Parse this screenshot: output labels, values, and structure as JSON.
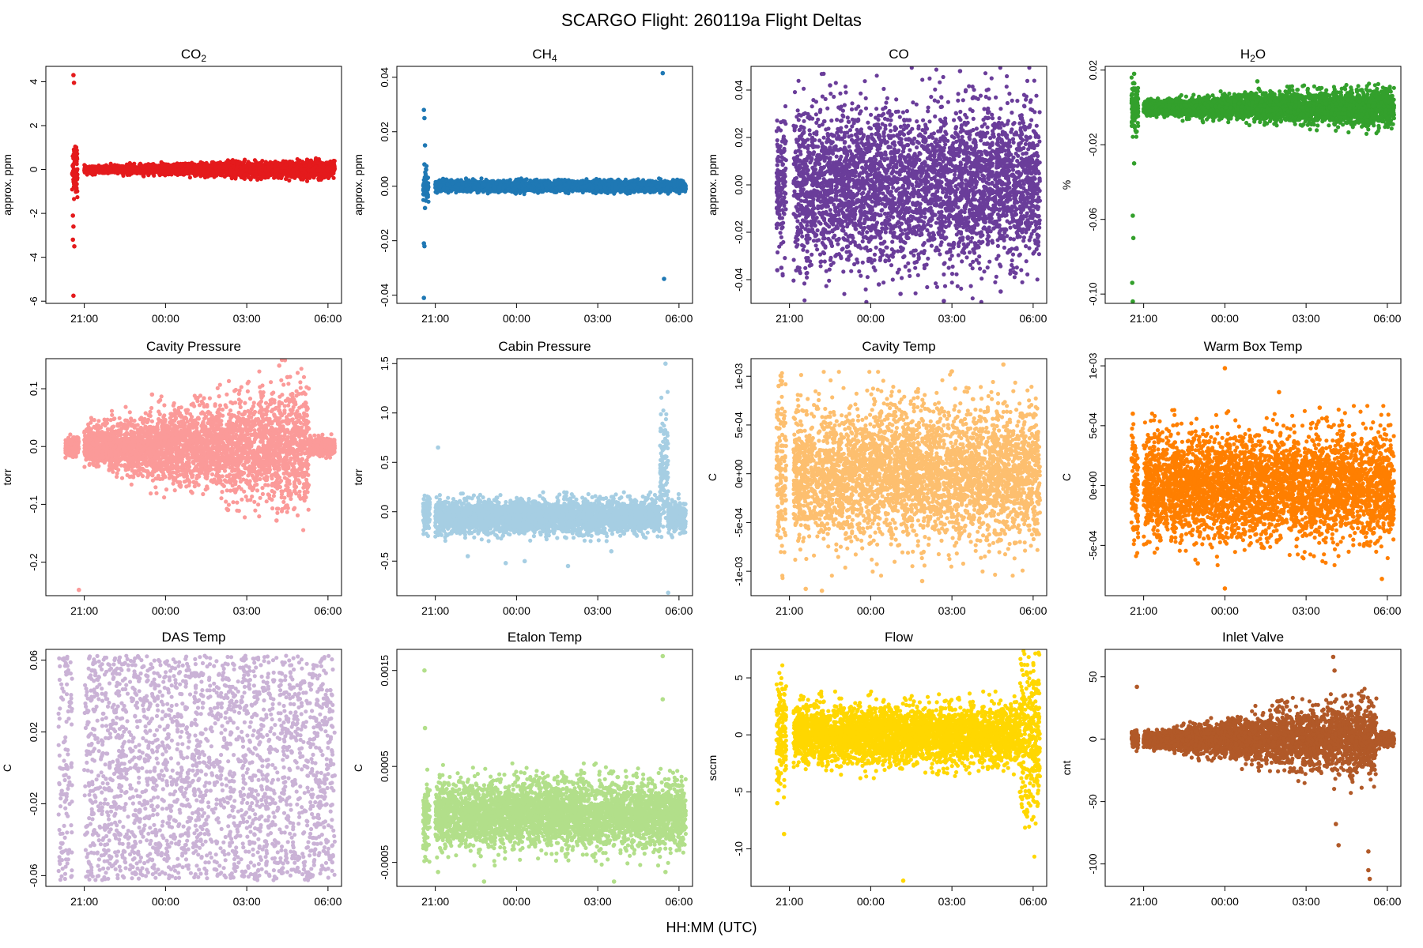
{
  "figure": {
    "title": "SCARGO Flight: 260119a  Flight Deltas",
    "xlabel": "HH:MM (UTC)"
  },
  "chart_data": [
    {
      "type": "scatter",
      "title": "CO",
      "title_sub": "2",
      "ylabel": "approx. ppm",
      "color": "#E41A1C",
      "x_ticks": [
        "21:00",
        "00:00",
        "03:00",
        "06:00"
      ],
      "x_tick_values": [
        21,
        24,
        27,
        30
      ],
      "xlim": [
        19.58,
        30.5
      ],
      "ylim": [
        -6.1,
        4.7
      ],
      "y_ticks": [
        -6,
        -4,
        -2,
        0,
        2,
        4
      ],
      "y_tick_labels": [
        "-6",
        "-4",
        "-2",
        "0",
        "2",
        "4"
      ],
      "segments": [
        {
          "start": 20.55,
          "end": 20.75,
          "center": 0,
          "amp": 0.9
        },
        {
          "start": 21.0,
          "end": 30.25,
          "center": 0,
          "amp": 0.12,
          "amp_end": 0.3
        }
      ],
      "outliers": [
        [
          20.6,
          4.3
        ],
        [
          20.62,
          3.95
        ],
        [
          20.6,
          -2.6
        ],
        [
          20.58,
          -3.2
        ],
        [
          20.63,
          -3.5
        ],
        [
          20.6,
          -5.75
        ],
        [
          20.58,
          -2.1
        ]
      ]
    },
    {
      "type": "scatter",
      "title": "CH",
      "title_sub": "4",
      "ylabel": "approx. ppm",
      "color": "#1F78B4",
      "x_ticks": [
        "21:00",
        "00:00",
        "03:00",
        "06:00"
      ],
      "x_tick_values": [
        21,
        24,
        27,
        30
      ],
      "xlim": [
        19.58,
        30.5
      ],
      "ylim": [
        -0.043,
        0.044
      ],
      "y_ticks": [
        -0.04,
        -0.02,
        0.0,
        0.02,
        0.04
      ],
      "y_tick_labels": [
        "-0.04",
        "-0.02",
        "0.00",
        "0.02",
        "0.04"
      ],
      "segments": [
        {
          "start": 20.55,
          "end": 20.75,
          "center": 0,
          "amp": 0.004
        },
        {
          "start": 21.0,
          "end": 30.25,
          "center": 0,
          "amp": 0.0015
        }
      ],
      "outliers": [
        [
          20.58,
          0.028
        ],
        [
          20.6,
          0.025
        ],
        [
          20.62,
          0.015
        ],
        [
          20.58,
          -0.021
        ],
        [
          20.6,
          -0.022
        ],
        [
          20.58,
          -0.041
        ],
        [
          29.4,
          0.0415
        ],
        [
          29.45,
          -0.034
        ],
        [
          20.6,
          0.008
        ],
        [
          20.62,
          -0.008
        ]
      ]
    },
    {
      "type": "scatter",
      "title": "CO",
      "title_sub": "",
      "ylabel": "approx. ppm",
      "color": "#6A3D9A",
      "x_ticks": [
        "21:00",
        "00:00",
        "03:00",
        "06:00"
      ],
      "x_tick_values": [
        21,
        24,
        27,
        30
      ],
      "xlim": [
        19.58,
        30.5
      ],
      "ylim": [
        -0.05,
        0.05
      ],
      "y_ticks": [
        -0.04,
        -0.02,
        0.0,
        0.02,
        0.04
      ],
      "y_tick_labels": [
        "-0.04",
        "-0.02",
        "0.00",
        "0.02",
        "0.04"
      ],
      "segments": [
        {
          "start": 20.52,
          "end": 20.88,
          "center": 0,
          "amp": 0.022
        },
        {
          "start": 21.15,
          "end": 30.25,
          "center": 0,
          "amp": 0.026
        }
      ],
      "outliers": [
        [
          20.55,
          -0.036
        ],
        [
          20.7,
          -0.035
        ],
        [
          22.5,
          0.042
        ],
        [
          25.1,
          -0.046
        ],
        [
          27.3,
          0.048
        ],
        [
          26.7,
          -0.049
        ],
        [
          28.8,
          -0.045
        ],
        [
          24.3,
          -0.042
        ],
        [
          27.8,
          0.037
        ]
      ]
    },
    {
      "type": "scatter",
      "title": "H",
      "title_sub": "2",
      "title_after": "O",
      "ylabel": "%",
      "color": "#33A02C",
      "x_ticks": [
        "21:00",
        "00:00",
        "03:00",
        "06:00"
      ],
      "x_tick_values": [
        21,
        24,
        27,
        30
      ],
      "xlim": [
        19.58,
        30.5
      ],
      "ylim": [
        -0.105,
        0.022
      ],
      "y_ticks": [
        -0.1,
        -0.06,
        -0.02,
        0.02
      ],
      "y_tick_labels": [
        "-0.10",
        "-0.06",
        "-0.02",
        "0.02"
      ],
      "segments": [
        {
          "start": 20.55,
          "end": 20.8,
          "center": 0,
          "amp": 0.012
        },
        {
          "start": 21.0,
          "end": 30.25,
          "center": 0,
          "amp": 0.003,
          "amp_end": 0.008
        }
      ],
      "outliers": [
        [
          20.6,
          -0.058
        ],
        [
          20.62,
          -0.07
        ],
        [
          20.58,
          -0.094
        ],
        [
          20.6,
          -0.104
        ],
        [
          20.65,
          -0.03
        ],
        [
          20.65,
          0.018
        ],
        [
          25.2,
          0.014
        ],
        [
          25.25,
          0.01
        ]
      ]
    },
    {
      "type": "scatter",
      "title": "Cavity Pressure",
      "title_sub": "",
      "ylabel": "torr",
      "color": "#FB9A99",
      "x_ticks": [
        "21:00",
        "00:00",
        "03:00",
        "06:00"
      ],
      "x_tick_values": [
        21,
        24,
        27,
        30
      ],
      "xlim": [
        19.58,
        30.5
      ],
      "ylim": [
        -0.258,
        0.152
      ],
      "y_ticks": [
        -0.2,
        -0.1,
        0.0,
        0.1
      ],
      "y_tick_labels": [
        "-0.2",
        "-0.1",
        "0.0",
        "0.1"
      ],
      "segments": [
        {
          "start": 20.3,
          "end": 20.8,
          "center": 0,
          "amp": 0.012
        },
        {
          "start": 21.0,
          "end": 29.3,
          "center": 0,
          "amp": 0.025,
          "amp_end": 0.085
        },
        {
          "start": 29.3,
          "end": 30.25,
          "center": 0,
          "amp": 0.012
        }
      ],
      "outliers": [
        [
          20.8,
          -0.248
        ],
        [
          28.2,
          0.14
        ],
        [
          28.3,
          0.15
        ],
        [
          28.1,
          -0.128
        ],
        [
          28.5,
          0.12
        ],
        [
          23.5,
          0.09
        ]
      ]
    },
    {
      "type": "scatter",
      "title": "Cabin Pressure",
      "title_sub": "",
      "ylabel": "torr",
      "color": "#A6CEE3",
      "x_ticks": [
        "21:00",
        "00:00",
        "03:00",
        "06:00"
      ],
      "x_tick_values": [
        21,
        24,
        27,
        30
      ],
      "xlim": [
        19.58,
        30.5
      ],
      "ylim": [
        -0.85,
        1.55
      ],
      "y_ticks": [
        -0.5,
        0.0,
        0.5,
        1.0,
        1.5
      ],
      "y_tick_labels": [
        "-0.5",
        "0.0",
        "0.5",
        "1.0",
        "1.5"
      ],
      "segments": [
        {
          "start": 20.55,
          "end": 20.8,
          "center": 0,
          "amp": 0.15
        },
        {
          "start": 21.0,
          "end": 29.3,
          "center": -0.05,
          "amp": 0.13
        },
        {
          "start": 29.3,
          "end": 29.6,
          "center": 0.4,
          "amp": 0.5
        },
        {
          "start": 29.6,
          "end": 30.25,
          "center": -0.05,
          "amp": 0.12
        }
      ],
      "outliers": [
        [
          21.1,
          0.65
        ],
        [
          23.6,
          -0.52
        ],
        [
          25.9,
          -0.55
        ],
        [
          22.2,
          -0.45
        ],
        [
          27.5,
          -0.4
        ],
        [
          29.5,
          1.5
        ],
        [
          29.6,
          -0.82
        ],
        [
          24.3,
          -0.5
        ]
      ]
    },
    {
      "type": "scatter",
      "title": "Cavity Temp",
      "title_sub": "",
      "ylabel": "C",
      "color": "#FDBF6F",
      "x_ticks": [
        "21:00",
        "00:00",
        "03:00",
        "06:00"
      ],
      "x_tick_values": [
        21,
        24,
        27,
        30
      ],
      "xlim": [
        19.58,
        30.5
      ],
      "ylim": [
        -0.00125,
        0.00118
      ],
      "y_ticks": [
        -0.001,
        -0.0005,
        0.0,
        0.0005,
        0.001
      ],
      "y_tick_labels": [
        "-1e-03",
        "-5e-04",
        "0e+00",
        "5e-04",
        "1e-03"
      ],
      "segments": [
        {
          "start": 20.52,
          "end": 20.88,
          "center": 0,
          "amp": 0.0007
        },
        {
          "start": 21.15,
          "end": 30.25,
          "center": 0,
          "amp": 0.00055
        }
      ],
      "outliers": [
        [
          21.6,
          -0.00118
        ],
        [
          22.2,
          -0.0012
        ],
        [
          27.0,
          0.00105
        ],
        [
          28.9,
          0.00112
        ],
        [
          25.9,
          -0.0011
        ],
        [
          20.6,
          0.0009
        ]
      ]
    },
    {
      "type": "scatter",
      "title": "Warm Box Temp",
      "title_sub": "",
      "ylabel": "C",
      "color": "#FF7F00",
      "x_ticks": [
        "21:00",
        "00:00",
        "03:00",
        "06:00"
      ],
      "x_tick_values": [
        21,
        24,
        27,
        30
      ],
      "xlim": [
        19.58,
        30.5
      ],
      "ylim": [
        -0.00092,
        0.00106
      ],
      "y_ticks": [
        -0.0005,
        0.0,
        0.0005,
        0.001
      ],
      "y_tick_labels": [
        "-5e-04",
        "0e+00",
        "5e-04",
        "1e-03"
      ],
      "segments": [
        {
          "start": 20.55,
          "end": 20.8,
          "center": 0,
          "amp": 0.0004
        },
        {
          "start": 21.0,
          "end": 30.25,
          "center": 0,
          "amp": 0.00035
        }
      ],
      "outliers": [
        [
          24.0,
          0.00098
        ],
        [
          24.0,
          -0.00086
        ],
        [
          26.0,
          0.00078
        ],
        [
          29.8,
          -0.00078
        ],
        [
          23.0,
          -0.00065
        ],
        [
          20.6,
          0.0006
        ],
        [
          27.5,
          0.00065
        ]
      ]
    },
    {
      "type": "scatter",
      "title": "DAS Temp",
      "title_sub": "",
      "ylabel": "C",
      "color": "#CAB2D6",
      "x_ticks": [
        "21:00",
        "00:00",
        "03:00",
        "06:00"
      ],
      "x_tick_values": [
        21,
        24,
        27,
        30
      ],
      "xlim": [
        19.58,
        30.5
      ],
      "ylim": [
        -0.066,
        0.066
      ],
      "y_ticks": [
        -0.06,
        -0.02,
        0.02,
        0.06
      ],
      "y_tick_labels": [
        "-0.06",
        "-0.02",
        "0.02",
        "0.06"
      ],
      "segments": [
        {
          "start": 20.05,
          "end": 20.55,
          "center": 0,
          "amp": 0.0625,
          "uniform": true
        },
        {
          "start": 21.0,
          "end": 30.25,
          "center": 0,
          "amp": 0.0625,
          "uniform": true
        }
      ],
      "outliers": []
    },
    {
      "type": "scatter",
      "title": "Etalon Temp",
      "title_sub": "",
      "ylabel": "C",
      "color": "#B2DF8A",
      "x_ticks": [
        "21:00",
        "00:00",
        "03:00",
        "06:00"
      ],
      "x_tick_values": [
        21,
        24,
        27,
        30
      ],
      "xlim": [
        19.58,
        30.5
      ],
      "ylim": [
        -0.00075,
        0.00172
      ],
      "y_ticks": [
        -0.0005,
        0.0005,
        0.0015
      ],
      "y_tick_labels": [
        "-0.0005",
        "0.0005",
        "0.0015"
      ],
      "segments": [
        {
          "start": 20.55,
          "end": 20.8,
          "center": 0,
          "amp": 0.0003
        },
        {
          "start": 21.0,
          "end": 30.25,
          "center": 0,
          "amp": 0.00028
        }
      ],
      "outliers": [
        [
          20.6,
          0.0015
        ],
        [
          20.62,
          0.0009
        ],
        [
          29.4,
          0.00165
        ],
        [
          29.4,
          0.0012
        ],
        [
          21.1,
          -0.0006
        ],
        [
          22.8,
          -0.0007
        ],
        [
          27.6,
          -0.0007
        ],
        [
          29.5,
          -0.0006
        ]
      ]
    },
    {
      "type": "scatter",
      "title": "Flow",
      "title_sub": "",
      "ylabel": "sccm",
      "color": "#FFD700",
      "x_ticks": [
        "21:00",
        "00:00",
        "03:00",
        "06:00"
      ],
      "x_tick_values": [
        21,
        24,
        27,
        30
      ],
      "xlim": [
        19.58,
        30.5
      ],
      "ylim": [
        -13.3,
        7.5
      ],
      "y_ticks": [
        -10,
        -5,
        0,
        5
      ],
      "y_tick_labels": [
        "-10",
        "-5",
        "0",
        "5"
      ],
      "segments": [
        {
          "start": 20.52,
          "end": 20.88,
          "center": 0,
          "amp": 3.5
        },
        {
          "start": 21.15,
          "end": 29.5,
          "center": 0,
          "amp": 2.0
        },
        {
          "start": 29.5,
          "end": 30.25,
          "center": 0,
          "amp": 5.8
        }
      ],
      "outliers": [
        [
          20.55,
          -6.0
        ],
        [
          20.8,
          -8.7
        ],
        [
          25.2,
          -12.8
        ],
        [
          30.2,
          7.2
        ]
      ]
    },
    {
      "type": "scatter",
      "title": "Inlet Valve",
      "title_sub": "",
      "ylabel": "cnt",
      "color": "#B15928",
      "x_ticks": [
        "21:00",
        "00:00",
        "03:00",
        "06:00"
      ],
      "x_tick_values": [
        21,
        24,
        27,
        30
      ],
      "xlim": [
        19.58,
        30.5
      ],
      "ylim": [
        -118,
        72
      ],
      "y_ticks": [
        -100,
        -50,
        0,
        50
      ],
      "y_tick_labels": [
        "-100",
        "-50",
        "0",
        "50"
      ],
      "segments": [
        {
          "start": 20.55,
          "end": 20.8,
          "center": 0,
          "amp": 5
        },
        {
          "start": 21.0,
          "end": 29.6,
          "center": 0,
          "amp": 4,
          "amp_end": 25
        },
        {
          "start": 29.6,
          "end": 30.25,
          "center": 0,
          "amp": 4
        }
      ],
      "outliers": [
        [
          20.75,
          42
        ],
        [
          28.0,
          66
        ],
        [
          28.05,
          55
        ],
        [
          28.1,
          -68
        ],
        [
          28.2,
          -85
        ],
        [
          29.3,
          -90
        ],
        [
          29.35,
          -112
        ],
        [
          29.3,
          -105
        ],
        [
          26.3,
          30
        ]
      ]
    }
  ]
}
